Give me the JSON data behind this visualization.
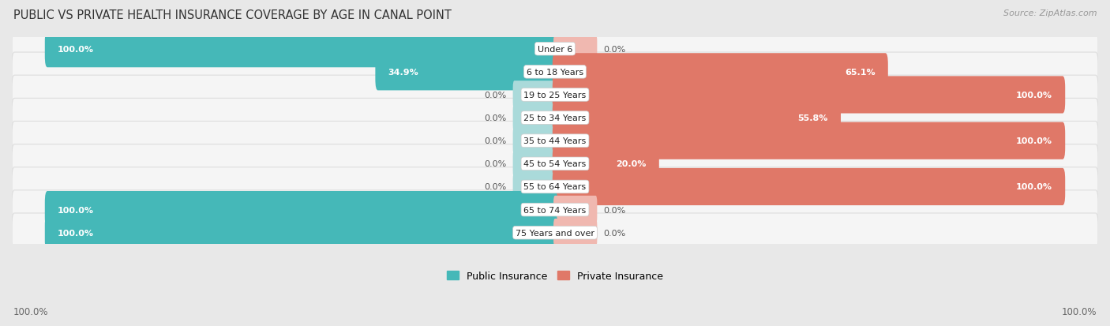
{
  "title": "Public vs Private Health Insurance Coverage by Age in Canal Point",
  "source": "Source: ZipAtlas.com",
  "categories": [
    "Under 6",
    "6 to 18 Years",
    "19 to 25 Years",
    "25 to 34 Years",
    "35 to 44 Years",
    "45 to 54 Years",
    "55 to 64 Years",
    "65 to 74 Years",
    "75 Years and over"
  ],
  "public_values": [
    100.0,
    34.9,
    0.0,
    0.0,
    0.0,
    0.0,
    0.0,
    100.0,
    100.0
  ],
  "private_values": [
    0.0,
    65.1,
    100.0,
    55.8,
    100.0,
    20.0,
    100.0,
    0.0,
    0.0
  ],
  "public_color": "#45b8b8",
  "private_color": "#e07868",
  "public_color_light": "#aadada",
  "private_color_light": "#f0b8b0",
  "bg_color": "#e8e8e8",
  "row_bg": "#f5f5f5",
  "legend_public": "Public Insurance",
  "legend_private": "Private Insurance",
  "axis_label_left": "100.0%",
  "axis_label_right": "100.0%",
  "bar_height": 0.62,
  "stub_size": 8.0,
  "xlim_half": 107
}
